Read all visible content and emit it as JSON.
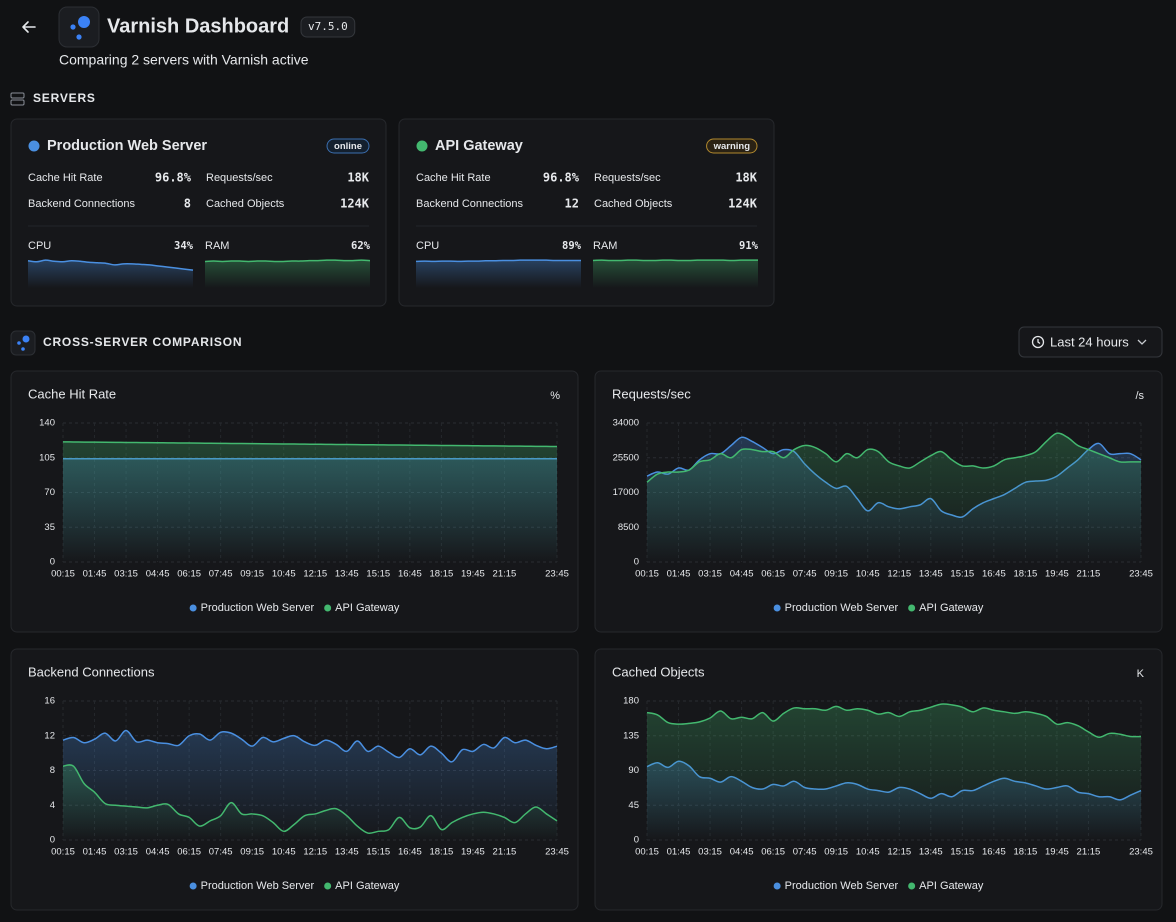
{
  "header": {
    "title": "Varnish Dashboard",
    "version": "v7.5.0",
    "subtitle": "Comparing 2 servers with Varnish active"
  },
  "sections": {
    "servers": "SERVERS",
    "comparison": "CROSS-SERVER COMPARISON"
  },
  "time_range": "Last 24 hours",
  "servers": [
    {
      "name": "Production Web Server",
      "status": "online",
      "color": "#4a8fe0",
      "metrics": [
        {
          "label": "Cache Hit Rate",
          "value": "96.8%"
        },
        {
          "label": "Requests/sec",
          "value": "18K"
        },
        {
          "label": "Backend Connections",
          "value": "8"
        },
        {
          "label": "Cached Objects",
          "value": "124K"
        }
      ],
      "cpu": {
        "label": "CPU",
        "value": "34%",
        "color": "#4a8fe0",
        "history": [
          52,
          50,
          53,
          51,
          50,
          52,
          51,
          49,
          48,
          47,
          44,
          46,
          46,
          45,
          44,
          42,
          40,
          38,
          36,
          34
        ]
      },
      "ram": {
        "label": "RAM",
        "value": "62%",
        "color": "#43b86f",
        "history": [
          60,
          61,
          60,
          61,
          61,
          60,
          61,
          61,
          60,
          60,
          61,
          61,
          62,
          62,
          63,
          63,
          62,
          62,
          63,
          62
        ]
      }
    },
    {
      "name": "API Gateway",
      "status": "warning",
      "color": "#43b86f",
      "metrics": [
        {
          "label": "Cache Hit Rate",
          "value": "96.8%"
        },
        {
          "label": "Requests/sec",
          "value": "18K"
        },
        {
          "label": "Backend Connections",
          "value": "12"
        },
        {
          "label": "Cached Objects",
          "value": "124K"
        }
      ],
      "cpu": {
        "label": "CPU",
        "value": "89%",
        "color": "#4a8fe0",
        "history": [
          86,
          87,
          86,
          87,
          87,
          86,
          87,
          87,
          88,
          88,
          89,
          89,
          90,
          90,
          90,
          90,
          89,
          89,
          89,
          89
        ]
      },
      "ram": {
        "label": "RAM",
        "value": "91%",
        "color": "#43b86f",
        "history": [
          90,
          91,
          90,
          90,
          91,
          91,
          90,
          90,
          91,
          91,
          90,
          90,
          91,
          91,
          91,
          91,
          90,
          91,
          91,
          91
        ]
      }
    }
  ],
  "chart_data": [
    {
      "type": "area",
      "title": "Cache Hit Rate",
      "unit": "%",
      "grid": true,
      "categories": [
        "00:15",
        null,
        null,
        "01:45",
        null,
        null,
        "03:15",
        null,
        null,
        "04:45",
        null,
        null,
        "06:15",
        null,
        null,
        "07:45",
        null,
        null,
        "09:15",
        null,
        null,
        "10:45",
        null,
        null,
        "12:15",
        null,
        null,
        "13:45",
        null,
        null,
        "15:15",
        null,
        null,
        "16:45",
        null,
        null,
        "18:15",
        null,
        null,
        "19:45",
        null,
        null,
        "21:15",
        null,
        null,
        null,
        null,
        "23:45"
      ],
      "ylim": [
        0,
        140
      ],
      "yticks": [
        0,
        35,
        70,
        105,
        140
      ],
      "series": [
        {
          "name": "Production Web Server",
          "color": "#4a8fe0",
          "values": [
            104,
            104,
            104,
            104,
            104,
            104,
            104,
            104,
            104,
            104,
            104,
            104,
            104,
            104,
            104,
            104,
            104,
            104,
            104,
            104,
            104,
            104,
            104,
            104,
            104,
            104,
            104,
            104,
            104,
            104,
            104,
            104,
            104,
            104,
            104,
            104,
            104,
            104,
            104,
            104,
            104,
            104,
            104,
            104,
            104,
            104,
            104,
            104
          ]
        },
        {
          "name": "API Gateway",
          "color": "#43b86f",
          "values": [
            121.0,
            120.9,
            120.8,
            120.7,
            120.6,
            120.5,
            120.4,
            120.3,
            120.2,
            120.1,
            120.0,
            119.9,
            119.8,
            119.7,
            119.6,
            119.5,
            119.4,
            119.3,
            119.2,
            119.1,
            119.0,
            118.9,
            118.8,
            118.7,
            118.6,
            118.5,
            118.4,
            118.3,
            118.2,
            118.1,
            118.0,
            117.9,
            117.8,
            117.7,
            117.6,
            117.5,
            117.4,
            117.3,
            117.2,
            117.1,
            117.0,
            116.9,
            116.8,
            116.7,
            116.6,
            116.5,
            116.4,
            116.3
          ]
        }
      ]
    },
    {
      "type": "area",
      "title": "Requests/sec",
      "unit": "/s",
      "grid": true,
      "categories": [
        "00:15",
        null,
        null,
        "01:45",
        null,
        null,
        "03:15",
        null,
        null,
        "04:45",
        null,
        null,
        "06:15",
        null,
        null,
        "07:45",
        null,
        null,
        "09:15",
        null,
        null,
        "10:45",
        null,
        null,
        "12:15",
        null,
        null,
        "13:45",
        null,
        null,
        "15:15",
        null,
        null,
        "16:45",
        null,
        null,
        "18:15",
        null,
        null,
        "19:45",
        null,
        null,
        "21:15",
        null,
        null,
        null,
        null,
        "23:45"
      ],
      "ylim": [
        0,
        34000
      ],
      "yticks": [
        0,
        8500,
        17000,
        25500,
        34000
      ],
      "series": [
        {
          "name": "Production Web Server",
          "color": "#4a8fe0",
          "values": [
            21000,
            22000,
            21500,
            23000,
            22500,
            25000,
            26500,
            26500,
            28500,
            30500,
            29500,
            28000,
            26500,
            27500,
            27000,
            24000,
            21500,
            19500,
            18000,
            18500,
            15500,
            12500,
            14500,
            13500,
            13000,
            13500,
            14000,
            15500,
            12500,
            11500,
            11000,
            13000,
            14500,
            15500,
            16500,
            18000,
            19500,
            19800,
            20000,
            21000,
            23000,
            25000,
            27500,
            29000,
            26500,
            26500,
            26500,
            25000
          ]
        },
        {
          "name": "API Gateway",
          "color": "#43b86f",
          "values": [
            19500,
            21500,
            22000,
            22000,
            22500,
            24500,
            25000,
            26500,
            25500,
            27500,
            27500,
            27000,
            27000,
            25500,
            27500,
            28500,
            28000,
            26500,
            24500,
            26500,
            25500,
            27500,
            27000,
            24500,
            23500,
            23000,
            24500,
            26000,
            27000,
            25000,
            23500,
            23500,
            23000,
            23500,
            25000,
            25500,
            26000,
            27000,
            29500,
            31500,
            30500,
            28500,
            27500,
            26500,
            25500,
            24500,
            24500,
            24500
          ]
        }
      ]
    },
    {
      "type": "area",
      "title": "Backend Connections",
      "grid": true,
      "categories": [
        "00:15",
        null,
        null,
        "01:45",
        null,
        null,
        "03:15",
        null,
        null,
        "04:45",
        null,
        null,
        "06:15",
        null,
        null,
        "07:45",
        null,
        null,
        "09:15",
        null,
        null,
        "10:45",
        null,
        null,
        "12:15",
        null,
        null,
        "13:45",
        null,
        null,
        "15:15",
        null,
        null,
        "16:45",
        null,
        null,
        "18:15",
        null,
        null,
        "19:45",
        null,
        null,
        "21:15",
        null,
        null,
        null,
        null,
        "23:45"
      ],
      "ylim": [
        0,
        16
      ],
      "yticks": [
        0,
        4,
        8,
        12,
        16
      ],
      "series": [
        {
          "name": "Production Web Server",
          "color": "#4a8fe0",
          "values": [
            11.5,
            11.8,
            11.2,
            11.6,
            12.3,
            11.4,
            12.6,
            11.3,
            11.5,
            11.2,
            11.1,
            10.9,
            12.0,
            12.2,
            11.5,
            12.4,
            12.3,
            11.6,
            10.8,
            11.8,
            11.3,
            11.7,
            12.0,
            11.3,
            10.9,
            11.5,
            11.0,
            10.2,
            11.4,
            10.2,
            10.8,
            10.1,
            9.5,
            10.5,
            9.8,
            10.8,
            10.0,
            9.0,
            10.4,
            10.2,
            11.0,
            10.6,
            11.8,
            11.2,
            11.5,
            10.9,
            10.5,
            10.8
          ]
        },
        {
          "name": "API Gateway",
          "color": "#43b86f",
          "values": [
            8.5,
            8.5,
            6.5,
            5.5,
            4.2,
            4.0,
            3.9,
            3.8,
            3.7,
            4.0,
            4.1,
            3.0,
            2.6,
            1.6,
            2.2,
            2.8,
            4.3,
            3.0,
            3.0,
            2.8,
            2.0,
            1.0,
            1.8,
            2.8,
            3.0,
            3.4,
            3.6,
            2.8,
            1.6,
            0.8,
            1.0,
            1.2,
            2.6,
            1.4,
            1.5,
            2.8,
            1.2,
            2.0,
            2.6,
            3.0,
            3.2,
            3.0,
            2.6,
            2.0,
            3.0,
            3.8,
            3.0,
            2.2
          ]
        }
      ]
    },
    {
      "type": "area",
      "title": "Cached Objects",
      "unit": "K",
      "grid": true,
      "categories": [
        "00:15",
        null,
        null,
        "01:45",
        null,
        null,
        "03:15",
        null,
        null,
        "04:45",
        null,
        null,
        "06:15",
        null,
        null,
        "07:45",
        null,
        null,
        "09:15",
        null,
        null,
        "10:45",
        null,
        null,
        "12:15",
        null,
        null,
        "13:45",
        null,
        null,
        "15:15",
        null,
        null,
        "16:45",
        null,
        null,
        "18:15",
        null,
        null,
        "19:45",
        null,
        null,
        "21:15",
        null,
        null,
        null,
        null,
        "23:45"
      ],
      "ylim": [
        0,
        180
      ],
      "yticks": [
        0,
        45,
        90,
        135,
        180
      ],
      "series": [
        {
          "name": "Production Web Server",
          "color": "#4a8fe0",
          "values": [
            95,
            100,
            94,
            102,
            96,
            82,
            80,
            75,
            82,
            76,
            68,
            66,
            72,
            70,
            76,
            68,
            66,
            66,
            70,
            74,
            72,
            66,
            64,
            62,
            68,
            66,
            60,
            54,
            60,
            56,
            64,
            64,
            70,
            76,
            80,
            76,
            74,
            70,
            66,
            68,
            70,
            62,
            60,
            56,
            56,
            52,
            58,
            64
          ]
        },
        {
          "name": "API Gateway",
          "color": "#43b86f",
          "values": [
            165,
            162,
            152,
            150,
            151,
            153,
            158,
            167,
            157,
            159,
            157,
            165,
            154,
            164,
            171,
            170,
            170,
            168,
            173,
            168,
            170,
            168,
            163,
            165,
            160,
            166,
            168,
            172,
            176,
            175,
            172,
            166,
            171,
            168,
            166,
            164,
            166,
            164,
            160,
            150,
            152,
            148,
            140,
            133,
            138,
            137,
            134,
            134
          ]
        }
      ]
    }
  ]
}
